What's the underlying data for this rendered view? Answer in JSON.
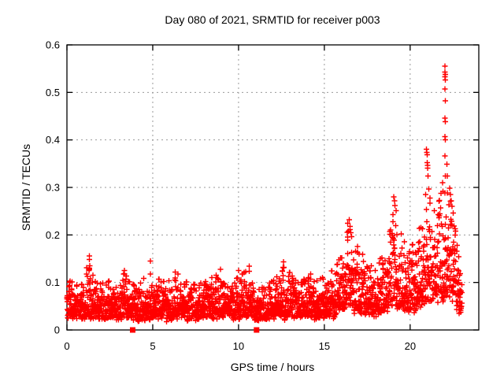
{
  "chart_data": {
    "type": "scatter",
    "title": "Day 080 of 2021, SRMTID for receiver p003",
    "xlabel": "GPS time / hours",
    "ylabel": "SRMTID / TECUs",
    "xlim": [
      0,
      24
    ],
    "ylim": [
      0,
      0.6
    ],
    "grid": true,
    "legend": "none",
    "xtick_values": [
      0,
      5,
      10,
      15,
      20
    ],
    "xtick_labels": [
      "0",
      "5",
      "10",
      "15",
      "20"
    ],
    "ytick_values": [
      0,
      0.1,
      0.2,
      0.3,
      0.4,
      0.5,
      0.6
    ],
    "ytick_labels": [
      "0",
      "0.1",
      "0.2",
      "0.3",
      "0.4",
      "0.5",
      "0.6"
    ],
    "marker": {
      "shape": "plus",
      "color": "#ff0000",
      "size": 7
    },
    "series": {
      "name": "SRMTID",
      "sampling_hours": 0.008333,
      "time_range_hours": [
        0,
        23.03
      ],
      "envelope_anchors_hour_mean_top": [
        [
          0.0,
          0.055,
          0.105
        ],
        [
          0.7,
          0.05,
          0.095
        ],
        [
          1.3,
          0.058,
          0.15
        ],
        [
          1.8,
          0.048,
          0.095
        ],
        [
          2.6,
          0.052,
          0.105
        ],
        [
          3.3,
          0.055,
          0.12
        ],
        [
          4.0,
          0.045,
          0.09
        ],
        [
          4.9,
          0.05,
          0.13
        ],
        [
          5.5,
          0.048,
          0.1
        ],
        [
          6.4,
          0.052,
          0.115
        ],
        [
          7.2,
          0.048,
          0.095
        ],
        [
          8.0,
          0.05,
          0.1
        ],
        [
          8.9,
          0.054,
          0.12
        ],
        [
          9.6,
          0.05,
          0.1
        ],
        [
          10.3,
          0.055,
          0.12
        ],
        [
          10.7,
          0.058,
          0.13
        ],
        [
          11.1,
          0.042,
          0.085
        ],
        [
          11.7,
          0.048,
          0.095
        ],
        [
          12.2,
          0.052,
          0.11
        ],
        [
          12.7,
          0.058,
          0.135
        ],
        [
          13.3,
          0.052,
          0.105
        ],
        [
          14.0,
          0.055,
          0.115
        ],
        [
          14.6,
          0.052,
          0.105
        ],
        [
          15.2,
          0.058,
          0.115
        ],
        [
          15.8,
          0.068,
          0.14
        ],
        [
          16.2,
          0.09,
          0.2
        ],
        [
          16.6,
          0.1,
          0.215
        ],
        [
          17.1,
          0.08,
          0.165
        ],
        [
          17.6,
          0.065,
          0.14
        ],
        [
          18.0,
          0.058,
          0.125
        ],
        [
          18.5,
          0.08,
          0.17
        ],
        [
          19.1,
          0.11,
          0.24
        ],
        [
          19.5,
          0.095,
          0.2
        ],
        [
          19.9,
          0.08,
          0.165
        ],
        [
          20.3,
          0.095,
          0.19
        ],
        [
          20.7,
          0.115,
          0.23
        ],
        [
          21.1,
          0.13,
          0.27
        ],
        [
          21.5,
          0.12,
          0.245
        ],
        [
          21.9,
          0.15,
          0.3
        ],
        [
          22.2,
          0.15,
          0.295
        ],
        [
          22.5,
          0.125,
          0.25
        ],
        [
          22.8,
          0.085,
          0.16
        ],
        [
          23.03,
          0.06,
          0.105
        ]
      ],
      "outlier_points": [
        [
          1.3,
          0.156
        ],
        [
          1.3,
          0.148
        ],
        [
          1.32,
          0.135
        ],
        [
          1.28,
          0.125
        ],
        [
          3.35,
          0.125
        ],
        [
          3.3,
          0.118
        ],
        [
          4.86,
          0.145
        ],
        [
          4.86,
          0.118
        ],
        [
          6.3,
          0.122
        ],
        [
          6.47,
          0.118
        ],
        [
          8.95,
          0.128
        ],
        [
          10.0,
          0.125
        ],
        [
          10.63,
          0.134
        ],
        [
          12.62,
          0.143
        ],
        [
          12.6,
          0.132
        ],
        [
          14.2,
          0.118
        ],
        [
          16.35,
          0.225
        ],
        [
          16.45,
          0.232
        ],
        [
          16.5,
          0.218
        ],
        [
          16.55,
          0.205
        ],
        [
          16.6,
          0.196
        ],
        [
          19.0,
          0.243
        ],
        [
          19.05,
          0.28
        ],
        [
          19.1,
          0.272
        ],
        [
          19.12,
          0.262
        ],
        [
          19.18,
          0.251
        ],
        [
          20.9,
          0.285
        ],
        [
          20.95,
          0.38
        ],
        [
          20.97,
          0.374
        ],
        [
          20.99,
          0.369
        ],
        [
          21.0,
          0.352
        ],
        [
          21.02,
          0.346
        ],
        [
          21.02,
          0.341
        ],
        [
          21.05,
          0.324
        ],
        [
          21.08,
          0.297
        ],
        [
          21.15,
          0.278
        ],
        [
          21.9,
          0.31
        ],
        [
          21.92,
          0.292
        ],
        [
          22.03,
          0.555
        ],
        [
          22.03,
          0.543
        ],
        [
          22.04,
          0.538
        ],
        [
          22.02,
          0.533
        ],
        [
          22.04,
          0.526
        ],
        [
          22.03,
          0.507
        ],
        [
          22.04,
          0.482
        ],
        [
          22.03,
          0.446
        ],
        [
          22.05,
          0.438
        ],
        [
          22.03,
          0.407
        ],
        [
          22.04,
          0.4
        ],
        [
          22.03,
          0.366
        ],
        [
          22.04,
          0.324
        ],
        [
          22.02,
          0.288
        ],
        [
          22.15,
          0.349
        ],
        [
          22.16,
          0.324
        ],
        [
          22.17,
          0.288
        ],
        [
          22.3,
          0.298
        ],
        [
          22.35,
          0.285
        ],
        [
          22.4,
          0.272
        ],
        [
          22.45,
          0.26
        ],
        [
          22.5,
          0.246
        ]
      ]
    },
    "zero_markers": {
      "shape": "filled-square",
      "color": "#ff0000",
      "size": 7,
      "points": [
        [
          3.83,
          0
        ],
        [
          11.05,
          0
        ]
      ]
    },
    "colors": {
      "data": "#ff0000",
      "grid": "#999999",
      "border": "#000000",
      "background": "#ffffff"
    }
  }
}
